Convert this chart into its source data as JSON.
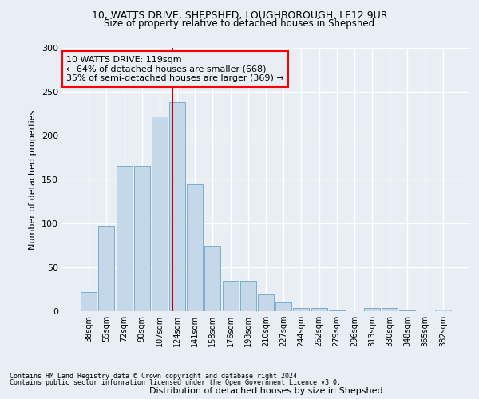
{
  "title1": "10, WATTS DRIVE, SHEPSHED, LOUGHBOROUGH, LE12 9UR",
  "title2": "Size of property relative to detached houses in Shepshed",
  "xlabel": "Distribution of detached houses by size in Shepshed",
  "ylabel": "Number of detached properties",
  "categories": [
    "38sqm",
    "55sqm",
    "72sqm",
    "90sqm",
    "107sqm",
    "124sqm",
    "141sqm",
    "158sqm",
    "176sqm",
    "193sqm",
    "210sqm",
    "227sqm",
    "244sqm",
    "262sqm",
    "279sqm",
    "296sqm",
    "313sqm",
    "330sqm",
    "348sqm",
    "365sqm",
    "382sqm"
  ],
  "values": [
    22,
    97,
    165,
    165,
    222,
    238,
    145,
    75,
    35,
    35,
    19,
    10,
    4,
    4,
    1,
    0,
    4,
    4,
    1,
    0,
    2
  ],
  "bar_color": "#c5d8ea",
  "bar_edge_color": "#7aaec8",
  "annotation_title": "10 WATTS DRIVE: 119sqm",
  "annotation_line1": "← 64% of detached houses are smaller (668)",
  "annotation_line2": "35% of semi-detached houses are larger (369) →",
  "ylim": [
    0,
    300
  ],
  "yticks": [
    0,
    50,
    100,
    150,
    200,
    250,
    300
  ],
  "footer1": "Contains HM Land Registry data © Crown copyright and database right 2024.",
  "footer2": "Contains public sector information licensed under the Open Government Licence v3.0.",
  "background_color": "#e8eef4",
  "grid_color": "#ffffff",
  "ref_line_color": "#cc0000"
}
